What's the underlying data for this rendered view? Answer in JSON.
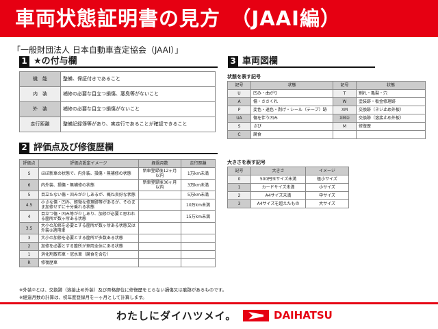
{
  "title": "車両状態証明書の見方　（JAAI編）",
  "organization": "「一般財団法人 日本自動車査定協会（JAAI）」",
  "section1": {
    "num": "1",
    "title": "★の付与欄",
    "rows": [
      {
        "label": "機　能",
        "text": "整備、保証付きであること"
      },
      {
        "label": "内　装",
        "text": "補修の必要な目立つ損傷、悪臭等がないこと"
      },
      {
        "label": "外　装",
        "text": "補修の必要な目立つ損傷がないこと"
      },
      {
        "label": "走行距離",
        "text": "整備記録簿等があり、実走行であることが確認できること"
      }
    ]
  },
  "section2": {
    "num": "2",
    "title": "評価点及び修復歴欄",
    "headers": [
      "評価点",
      "評価点設定イメージ",
      "経過月数",
      "走行距離"
    ],
    "rows": [
      [
        "S",
        "ほぼ新車の状態で、内外装、損傷・無補修の状態",
        "新車登録後12ヶ月以内",
        "1万km未満"
      ],
      [
        "6",
        "内外装、損傷・無補修の状態",
        "新車登録後36ヶ月以内",
        "3万km未満"
      ],
      [
        "5",
        "目立たない傷・凹みが少しあるが、概ね良好な状態",
        "",
        "5万km未満"
      ],
      [
        "4.5",
        "小さな傷・凹み、軽微な修理跡等があるが、そのまま加修せずに十分乗れる状態",
        "",
        "10万km未満"
      ],
      [
        "4",
        "目立つ傷・凹み等が少しあり、加修が必要と思われる箇所が数ヶ所ある状態",
        "",
        "15万km未満"
      ],
      [
        "3.5",
        "大小の加修を必要とする箇所が数ヶ所ある状態又は外装②適用車",
        "",
        ""
      ],
      [
        "3",
        "大小の加修を必要とする箇所が多数ある状態",
        "",
        ""
      ],
      [
        "2",
        "加修を必要とする箇所が車両全体にある状態",
        "",
        ""
      ],
      [
        "1",
        "消化剤散布車・冠水車（腐食を含む）",
        "",
        ""
      ],
      [
        "R",
        "修復歴車",
        "",
        ""
      ]
    ],
    "notes": [
      "※外装②とは、交換跡（溶接止め外装）及び骨格部位に修復歴をとらない損傷又は痕跡があるものです。",
      "※経過月数の計算は、初年度登録月を一ヶ月として計算します。"
    ]
  },
  "section3": {
    "num": "3",
    "title": "車両図欄",
    "state_label": "状態を表す記号",
    "state_headers": [
      "記号",
      "状態",
      "記号",
      "状態"
    ],
    "state_rows": [
      [
        "U",
        "凹み・曲がり",
        "T",
        "割れ・亀裂・穴"
      ],
      [
        "A",
        "傷・ささくれ",
        "W",
        "塗装跡・板金修理跡"
      ],
      [
        "P",
        "変色・退色・剥げ・シール（テープ）跡",
        "XM",
        "交換跡（ネジ止め外板）"
      ],
      [
        "UA",
        "傷を伴う凹み",
        "XM②",
        "交換跡（溶接止め外板）"
      ],
      [
        "S",
        "さび",
        "M",
        "修復歴"
      ],
      [
        "C",
        "腐食",
        "",
        ""
      ]
    ],
    "size_label": "大きさを表す記号",
    "size_headers": [
      "記号",
      "大きさ",
      "イメージ"
    ],
    "size_rows": [
      [
        "0",
        "500円玉サイズ未満",
        "極小サイズ"
      ],
      [
        "1",
        "カードサイズ未満",
        "小サイズ"
      ],
      [
        "2",
        "A4サイズ未満",
        "中サイズ"
      ],
      [
        "3",
        "A4サイズを超えたもの",
        "大サイズ"
      ]
    ]
  },
  "footer": {
    "slogan": "わたしにダイハツメイ。",
    "brand": "DAIHATSU",
    "brand_color": "#e60012"
  }
}
